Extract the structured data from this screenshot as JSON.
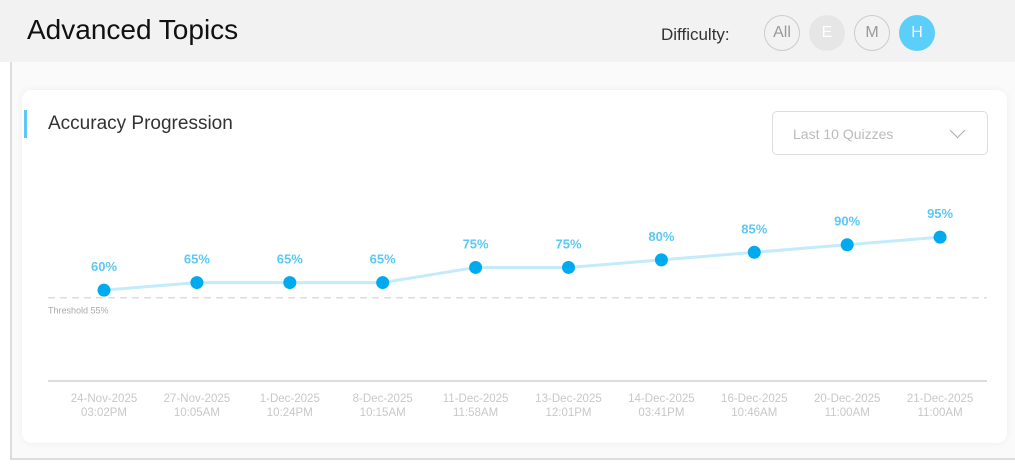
{
  "header": {
    "title": "Advanced Topics",
    "difficulty_label": "Difficulty:",
    "filters": [
      {
        "label": "All",
        "state": "outline"
      },
      {
        "label": "E",
        "state": "disabled"
      },
      {
        "label": "M",
        "state": "outline"
      },
      {
        "label": "H",
        "state": "active"
      }
    ]
  },
  "card": {
    "title": "Accuracy Progression",
    "range_select": "Last 10 Quizzes"
  },
  "colors": {
    "accent": "#5bc8f5",
    "point": "#00aaee",
    "line": "#c4ebfa"
  },
  "chart_data": {
    "type": "line",
    "title": "Accuracy Progression",
    "categories": [
      [
        "24-Nov-2025",
        "03:02PM"
      ],
      [
        "27-Nov-2025",
        "10:05AM"
      ],
      [
        "1-Dec-2025",
        "10:24PM"
      ],
      [
        "8-Dec-2025",
        "10:15AM"
      ],
      [
        "11-Dec-2025",
        "11:58AM"
      ],
      [
        "13-Dec-2025",
        "12:01PM"
      ],
      [
        "14-Dec-2025",
        "03:41PM"
      ],
      [
        "16-Dec-2025",
        "10:46AM"
      ],
      [
        "20-Dec-2025",
        "11:00AM"
      ],
      [
        "21-Dec-2025",
        "11:00AM"
      ]
    ],
    "values": [
      60,
      65,
      65,
      65,
      75,
      75,
      80,
      85,
      90,
      95
    ],
    "data_labels": [
      "60%",
      "65%",
      "65%",
      "65%",
      "75%",
      "75%",
      "80%",
      "85%",
      "90%",
      "95%"
    ],
    "threshold": {
      "value": 55,
      "label": "Threshold 55%"
    },
    "ylim": [
      0,
      100
    ],
    "grid": false
  }
}
